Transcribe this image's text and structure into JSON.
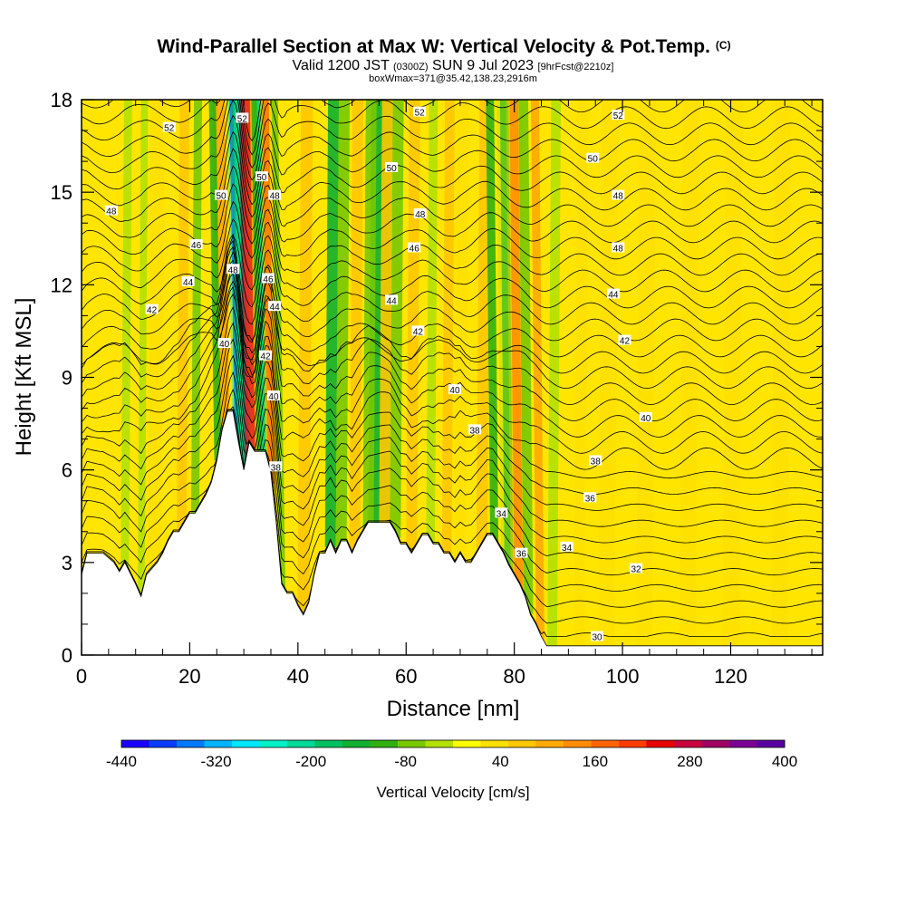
{
  "header": {
    "title": "Wind-Parallel Section at Max W: Vertical Velocity & Pot.Temp.",
    "title_suffix": "(C)",
    "valid_prefix": "Valid 1200 JST",
    "valid_utc": "(0300Z)",
    "valid_date": "SUN 9 Jul 2023",
    "forecast": "[9hrFcst@2210z]",
    "box_info": "boxWmax=371@35.42,138.23,2916m"
  },
  "chart_data": {
    "type": "heatmap",
    "xlabel": "Distance [nm]",
    "ylabel": "Height [Kft MSL]",
    "xlim": [
      0,
      137
    ],
    "ylim": [
      0,
      18
    ],
    "x_ticks": [
      "0",
      "20",
      "40",
      "60",
      "80",
      "100",
      "120"
    ],
    "y_ticks": [
      "0",
      "3",
      "6",
      "9",
      "12",
      "15",
      "18"
    ],
    "field_label": "Vertical Velocity [cm/s]",
    "colorbar": {
      "tick_labels": [
        "-440",
        "-320",
        "-200",
        "-80",
        "40",
        "160",
        "280",
        "400"
      ],
      "colors": [
        "#1a00ff",
        "#0a3cff",
        "#0078ff",
        "#00b4ff",
        "#00e6ff",
        "#00f0c8",
        "#00d898",
        "#00c060",
        "#10b030",
        "#30b010",
        "#78c800",
        "#b4e000",
        "#ffff00",
        "#ffe000",
        "#ffc800",
        "#ffaa00",
        "#ff8c00",
        "#ff6400",
        "#ff3c00",
        "#e60000",
        "#c8003c",
        "#a00064",
        "#7a0096",
        "#5a00a0"
      ]
    },
    "background_value_color": "#ffe500",
    "terrain_kft": [
      [
        0,
        2.6
      ],
      [
        1,
        3.3
      ],
      [
        4,
        3.3
      ],
      [
        6,
        3.0
      ],
      [
        7,
        2.7
      ],
      [
        8,
        3.0
      ],
      [
        10,
        2.3
      ],
      [
        11,
        1.9
      ],
      [
        12,
        2.6
      ],
      [
        14,
        3.0
      ],
      [
        15,
        3.3
      ],
      [
        16,
        3.7
      ],
      [
        17,
        4.0
      ],
      [
        18,
        4.0
      ],
      [
        19,
        4.3
      ],
      [
        20,
        4.6
      ],
      [
        21,
        4.6
      ],
      [
        22,
        4.9
      ],
      [
        23,
        5.2
      ],
      [
        24,
        5.6
      ],
      [
        25,
        6.3
      ],
      [
        26,
        7.3
      ],
      [
        27,
        7.9
      ],
      [
        28,
        7.9
      ],
      [
        29,
        6.9
      ],
      [
        30,
        6.0
      ],
      [
        31,
        6.9
      ],
      [
        32,
        6.6
      ],
      [
        33,
        6.6
      ],
      [
        34,
        6.6
      ],
      [
        35,
        5.9
      ],
      [
        36,
        4.3
      ],
      [
        37,
        2.3
      ],
      [
        38,
        2.0
      ],
      [
        39,
        2.0
      ],
      [
        40,
        1.6
      ],
      [
        41,
        1.3
      ],
      [
        42,
        1.7
      ],
      [
        43,
        2.6
      ],
      [
        44,
        3.3
      ],
      [
        45,
        3.3
      ],
      [
        46,
        3.7
      ],
      [
        47,
        3.3
      ],
      [
        48,
        3.7
      ],
      [
        49,
        3.7
      ],
      [
        50,
        3.3
      ],
      [
        51,
        3.7
      ],
      [
        52,
        4.0
      ],
      [
        53,
        4.3
      ],
      [
        55,
        4.3
      ],
      [
        57,
        4.3
      ],
      [
        58,
        4.0
      ],
      [
        59,
        3.6
      ],
      [
        60,
        3.6
      ],
      [
        61,
        3.3
      ],
      [
        62,
        3.6
      ],
      [
        63,
        3.9
      ],
      [
        64,
        3.9
      ],
      [
        65,
        3.6
      ],
      [
        66,
        3.6
      ],
      [
        67,
        3.3
      ],
      [
        68,
        3.3
      ],
      [
        69,
        3.0
      ],
      [
        70,
        3.3
      ],
      [
        71,
        3.0
      ],
      [
        72,
        3.0
      ],
      [
        73,
        3.3
      ],
      [
        74,
        3.6
      ],
      [
        75,
        3.9
      ],
      [
        76,
        3.9
      ],
      [
        77,
        3.6
      ],
      [
        78,
        3.3
      ],
      [
        79,
        2.9
      ],
      [
        80,
        2.6
      ],
      [
        81,
        2.3
      ],
      [
        82,
        1.9
      ],
      [
        83,
        1.3
      ],
      [
        84,
        1.0
      ],
      [
        85,
        0.6
      ],
      [
        86,
        0.3
      ],
      [
        137,
        0.3
      ]
    ],
    "w_features": [
      {
        "x": 30.5,
        "w": 1.0,
        "v": 400
      },
      {
        "x": 31.5,
        "w": 1.2,
        "v": 280
      },
      {
        "x": 28.8,
        "w": 0.9,
        "v": -380
      },
      {
        "x": 29.6,
        "w": 0.7,
        "v": -250
      },
      {
        "x": 33.6,
        "w": 1.0,
        "v": -260
      },
      {
        "x": 32.9,
        "w": 0.6,
        "v": -120
      },
      {
        "x": 35.1,
        "w": 1.2,
        "v": 200
      },
      {
        "x": 26.3,
        "w": 2.2,
        "v": 110
      },
      {
        "x": 25.2,
        "w": 1.3,
        "v": -110
      },
      {
        "x": 37.1,
        "w": 1.2,
        "v": -80
      },
      {
        "x": 21.0,
        "w": 1.5,
        "v": -60
      },
      {
        "x": 18.5,
        "w": 1.8,
        "v": 55
      },
      {
        "x": 13.5,
        "w": 2.5,
        "v": 40
      },
      {
        "x": 11.0,
        "w": 1.3,
        "v": -50
      },
      {
        "x": 8.0,
        "w": 1.5,
        "v": -30
      },
      {
        "x": 41.0,
        "w": 2.2,
        "v": 60
      },
      {
        "x": 46.0,
        "w": 2.0,
        "v": -130
      },
      {
        "x": 48.0,
        "w": 2.0,
        "v": -90
      },
      {
        "x": 50.5,
        "w": 2.0,
        "v": 60
      },
      {
        "x": 55.0,
        "w": 4.0,
        "v": -140
      },
      {
        "x": 53.0,
        "w": 2.0,
        "v": -60
      },
      {
        "x": 58.0,
        "w": 2.0,
        "v": -80
      },
      {
        "x": 56.0,
        "w": 2.0,
        "v": 70
      },
      {
        "x": 61.0,
        "w": 2.0,
        "v": 80
      },
      {
        "x": 64.5,
        "w": 1.6,
        "v": -40
      },
      {
        "x": 67.5,
        "w": 1.8,
        "v": 60
      },
      {
        "x": 70.0,
        "w": 2.0,
        "v": 40
      },
      {
        "x": 74.0,
        "w": 2.0,
        "v": 55
      },
      {
        "x": 76.3,
        "w": 1.5,
        "v": -120
      },
      {
        "x": 79.0,
        "w": 1.6,
        "v": -160
      },
      {
        "x": 80.8,
        "w": 1.6,
        "v": 180
      },
      {
        "x": 82.6,
        "w": 1.8,
        "v": -80
      },
      {
        "x": 84.8,
        "w": 1.5,
        "v": 90
      },
      {
        "x": 87.0,
        "w": 1.8,
        "v": -50
      },
      {
        "x": 92.0,
        "w": 2.0,
        "v": 40
      },
      {
        "x": 97.0,
        "w": 3.0,
        "v": 30
      },
      {
        "x": 104.0,
        "w": 3.0,
        "v": 25
      },
      {
        "x": 112.0,
        "w": 3.0,
        "v": 25
      },
      {
        "x": 120.0,
        "w": 3.0,
        "v": 20
      },
      {
        "x": 129.0,
        "w": 3.0,
        "v": 20
      }
    ],
    "contour_labels": [
      {
        "text": "52",
        "x": 16.2,
        "y": 17.1
      },
      {
        "text": "48",
        "x": 5.5,
        "y": 14.4
      },
      {
        "text": "46",
        "x": 21.2,
        "y": 13.3
      },
      {
        "text": "44",
        "x": 19.7,
        "y": 12.1
      },
      {
        "text": "42",
        "x": 13.0,
        "y": 11.2
      },
      {
        "text": "40",
        "x": 26.4,
        "y": 10.1
      },
      {
        "text": "50",
        "x": 25.8,
        "y": 14.9
      },
      {
        "text": "52",
        "x": 29.7,
        "y": 17.4
      },
      {
        "text": "48",
        "x": 28.0,
        "y": 12.5
      },
      {
        "text": "50",
        "x": 33.3,
        "y": 15.5
      },
      {
        "text": "48",
        "x": 35.7,
        "y": 14.9
      },
      {
        "text": "46",
        "x": 34.5,
        "y": 12.2
      },
      {
        "text": "44",
        "x": 35.7,
        "y": 11.3
      },
      {
        "text": "42",
        "x": 34.0,
        "y": 9.7
      },
      {
        "text": "40",
        "x": 35.5,
        "y": 8.4
      },
      {
        "text": "38",
        "x": 35.9,
        "y": 6.1
      },
      {
        "text": "52",
        "x": 62.5,
        "y": 17.6
      },
      {
        "text": "50",
        "x": 57.3,
        "y": 15.8
      },
      {
        "text": "48",
        "x": 62.6,
        "y": 14.3
      },
      {
        "text": "46",
        "x": 61.5,
        "y": 13.2
      },
      {
        "text": "44",
        "x": 57.3,
        "y": 11.5
      },
      {
        "text": "42",
        "x": 62.2,
        "y": 10.5
      },
      {
        "text": "40",
        "x": 69.0,
        "y": 8.6
      },
      {
        "text": "38",
        "x": 72.7,
        "y": 7.3
      },
      {
        "text": "34",
        "x": 77.6,
        "y": 4.6
      },
      {
        "text": "36",
        "x": 81.3,
        "y": 3.3
      },
      {
        "text": "52",
        "x": 99.2,
        "y": 17.5
      },
      {
        "text": "50",
        "x": 94.5,
        "y": 16.1
      },
      {
        "text": "48",
        "x": 99.2,
        "y": 14.9
      },
      {
        "text": "48",
        "x": 99.2,
        "y": 13.2
      },
      {
        "text": "44",
        "x": 98.3,
        "y": 11.7
      },
      {
        "text": "42",
        "x": 100.4,
        "y": 10.2
      },
      {
        "text": "40",
        "x": 104.3,
        "y": 7.7
      },
      {
        "text": "38",
        "x": 95.0,
        "y": 6.3
      },
      {
        "text": "36",
        "x": 94.0,
        "y": 5.1
      },
      {
        "text": "34",
        "x": 89.7,
        "y": 3.5
      },
      {
        "text": "32",
        "x": 102.5,
        "y": 2.8
      },
      {
        "text": "30",
        "x": 95.3,
        "y": 0.6
      }
    ]
  }
}
